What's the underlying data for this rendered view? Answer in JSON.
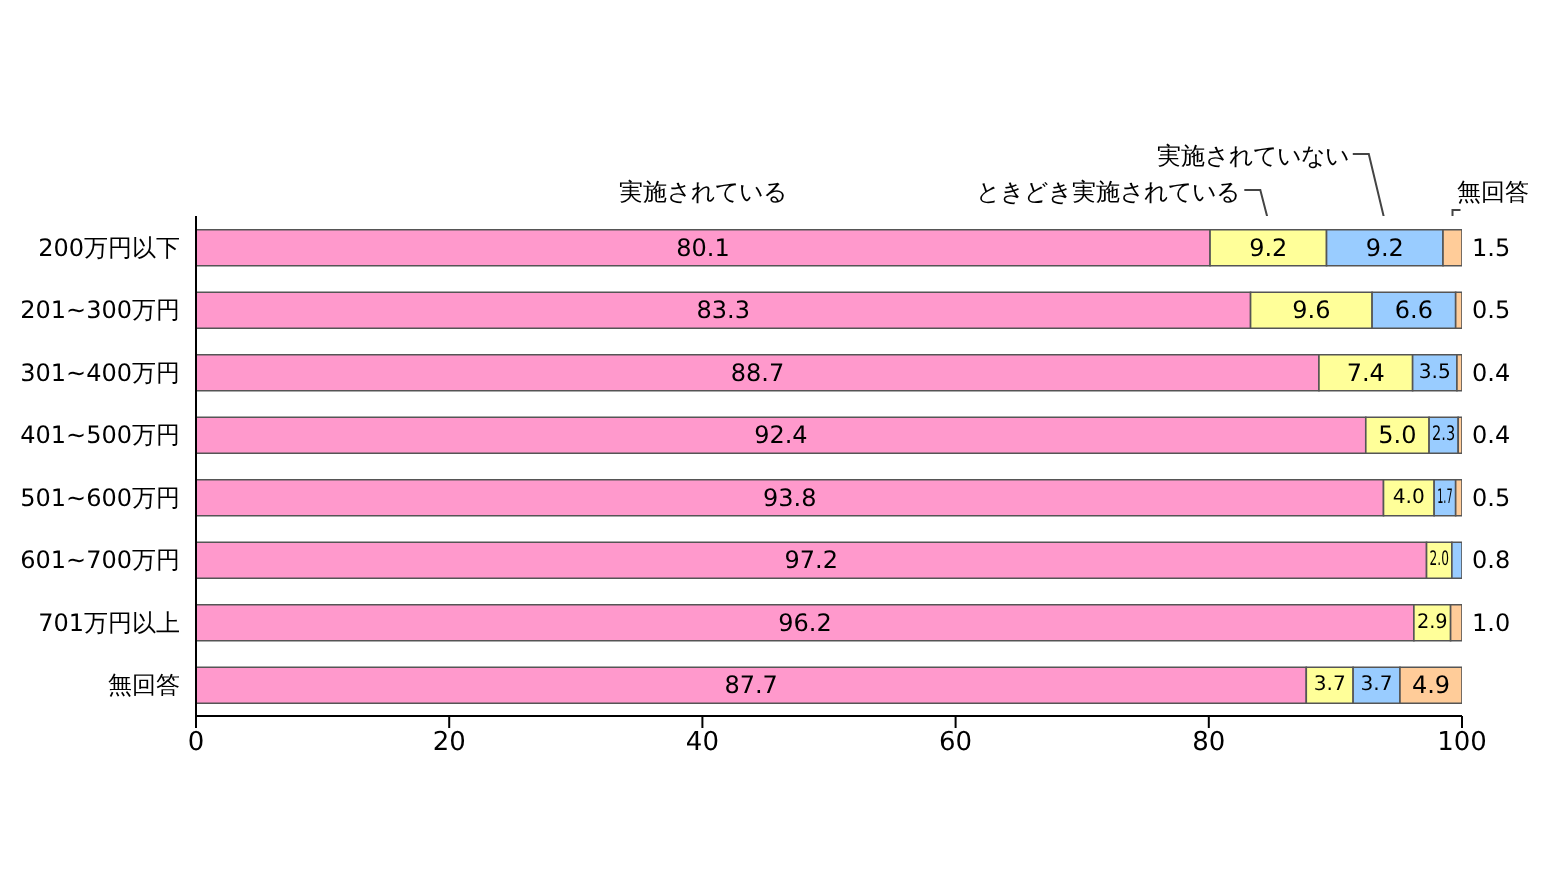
{
  "chart_data": {
    "type": "bar",
    "orientation": "horizontal",
    "stacked": true,
    "categories": [
      "200万円以下",
      "201~300万円",
      "301~400万円",
      "401~500万円",
      "501~600万円",
      "601~700万円",
      "701万円以上",
      "無回答"
    ],
    "series": [
      {
        "name": "実施されている",
        "color": "#ff99cc",
        "values": [
          80.1,
          83.3,
          88.7,
          92.4,
          93.8,
          97.2,
          96.2,
          87.7
        ],
        "value_labels": [
          "80.1",
          "83.3",
          "88.7",
          "92.4",
          "93.8",
          "97.2",
          "96.2",
          "87.7"
        ]
      },
      {
        "name": "ときどき実施されている",
        "color": "#ffff99",
        "values": [
          9.2,
          9.6,
          7.4,
          5.0,
          4.0,
          2.0,
          2.9,
          3.7
        ],
        "value_labels": [
          "9.2",
          "9.6",
          "7.4",
          "5.0",
          "4.0",
          "2.0",
          "2.9",
          "3.7"
        ]
      },
      {
        "name": "実施されていない",
        "color": "#99ccff",
        "values": [
          9.2,
          6.6,
          3.5,
          2.3,
          1.7,
          0.8,
          null,
          3.7
        ],
        "value_labels": [
          "9.2",
          "6.6",
          "3.5",
          "2.3",
          "1.7",
          "0.8",
          null,
          "3.7"
        ]
      },
      {
        "name": "無回答",
        "color": "#ffcc99",
        "values": [
          1.5,
          0.5,
          0.4,
          0.4,
          0.5,
          null,
          1.0,
          4.9
        ],
        "value_labels": [
          "1.5",
          "0.5",
          "0.4",
          "0.4",
          "0.5",
          null,
          "1.0",
          "4.9"
        ]
      }
    ],
    "xlim": [
      0,
      100
    ],
    "xticks": [
      0,
      20,
      40,
      60,
      80,
      100
    ],
    "legend": false
  }
}
